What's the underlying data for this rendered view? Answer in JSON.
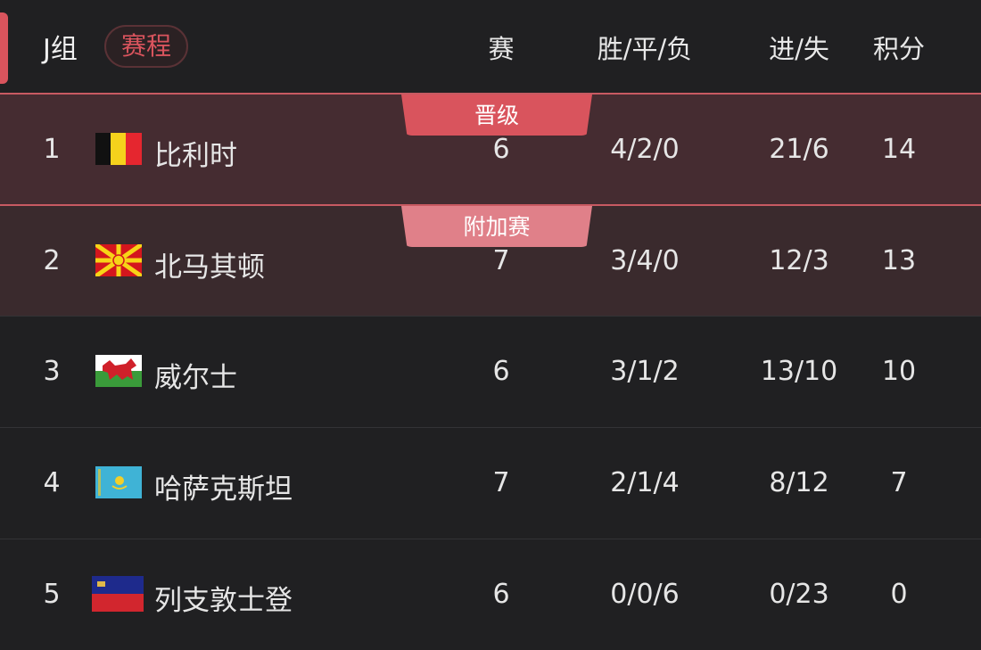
{
  "header": {
    "group": "J组",
    "schedule_button": "赛程",
    "columns": {
      "played": "赛",
      "wdl": "胜/平/负",
      "goals": "进/失",
      "points": "积分"
    }
  },
  "colors": {
    "accent": "#d9545d",
    "qualified_tag": "#d9545d",
    "playoff_tag": "#e08089"
  },
  "rows": [
    {
      "rank": "1",
      "team": "比利时",
      "flag": "belgium-flag",
      "played": "6",
      "wdl": "4/2/0",
      "goals": "21/6",
      "points": "14",
      "tag": "晋级"
    },
    {
      "rank": "2",
      "team": "北马其顿",
      "flag": "north-macedonia-flag",
      "played": "7",
      "wdl": "3/4/0",
      "goals": "12/3",
      "points": "13",
      "tag": "附加赛"
    },
    {
      "rank": "3",
      "team": "威尔士",
      "flag": "wales-flag",
      "played": "6",
      "wdl": "3/1/2",
      "goals": "13/10",
      "points": "10"
    },
    {
      "rank": "4",
      "team": "哈萨克斯坦",
      "flag": "kazakhstan-flag",
      "played": "7",
      "wdl": "2/1/4",
      "goals": "8/12",
      "points": "7"
    },
    {
      "rank": "5",
      "team": "列支敦士登",
      "flag": "liechtenstein-flag",
      "played": "6",
      "wdl": "0/0/6",
      "goals": "0/23",
      "points": "0"
    }
  ]
}
